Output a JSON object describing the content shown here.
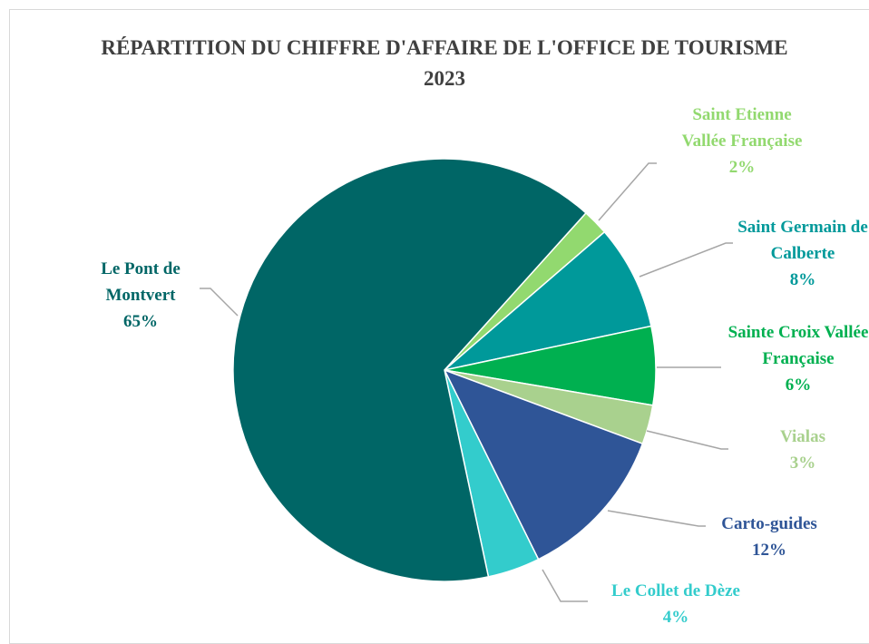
{
  "chart_data": {
    "type": "pie",
    "title": "RÉPARTITION DU CHIFFRE D'AFFAIRE DE L'OFFICE DE TOURISME 2023",
    "categories": [
      "Saint Etienne Vallée Française",
      "Saint Germain de Calberte",
      "Sainte Croix Vallée Française",
      "Vialas",
      "Carto-guides",
      "Le Collet de Dèze",
      "Le Pont de Montvert"
    ],
    "values": [
      2,
      8,
      6,
      3,
      12,
      4,
      65
    ],
    "value_labels": [
      "2%",
      "8%",
      "6%",
      "3%",
      "12%",
      "4%",
      "65%"
    ],
    "colors": [
      "#92d96f",
      "#00999a",
      "#00b050",
      "#a9d18e",
      "#2f5597",
      "#33cccc",
      "#006666"
    ]
  }
}
